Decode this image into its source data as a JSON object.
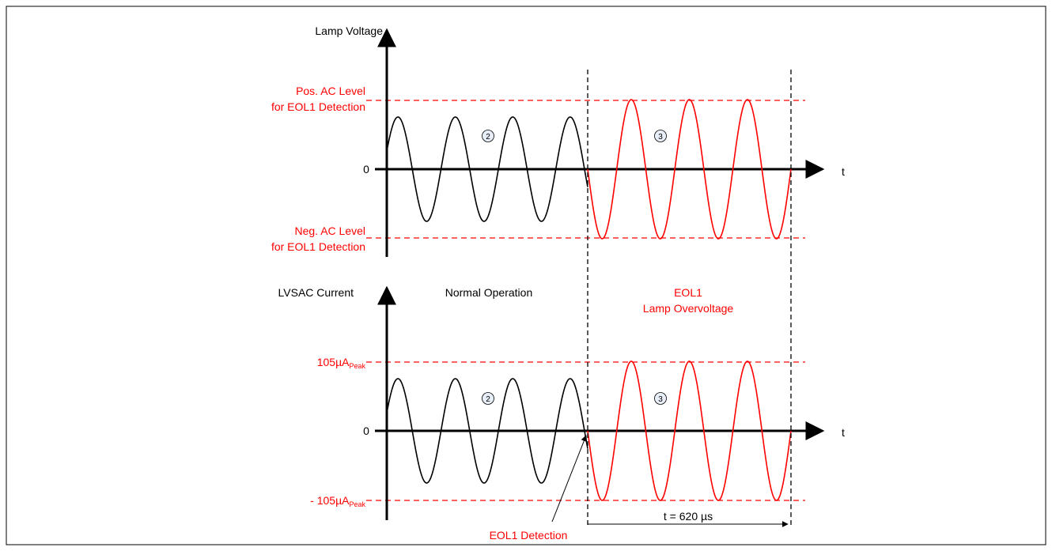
{
  "colors": {
    "normal": "#000000",
    "eol": "#ff0000",
    "frame": "#000000",
    "marker_fill": "#e8eef8"
  },
  "top_panel": {
    "y_axis_label": "Lamp Voltage",
    "pos_level_line1": "Pos. AC Level",
    "pos_level_line2": "for EOL1 Detection",
    "neg_level_line1": "Neg. AC Level",
    "neg_level_line2": "for EOL1 Detection",
    "zero_label": "0",
    "time_label": "t",
    "marker_normal": "2",
    "marker_eol": "3"
  },
  "bottom_panel": {
    "y_axis_label": "LVSAC Current",
    "normal_label": "Normal Operation",
    "eol_title_line1": "EOL1",
    "eol_title_line2": "Lamp Overvoltage",
    "pos_level_main": "105µA",
    "pos_level_sub": "Peak",
    "neg_level_main": "- 105µA",
    "neg_level_sub": "Peak",
    "zero_label": "0",
    "time_label": "t",
    "marker_normal": "2",
    "marker_eol": "3",
    "detection_label": "EOL1 Detection",
    "duration_label": "t = 620 µs"
  }
}
